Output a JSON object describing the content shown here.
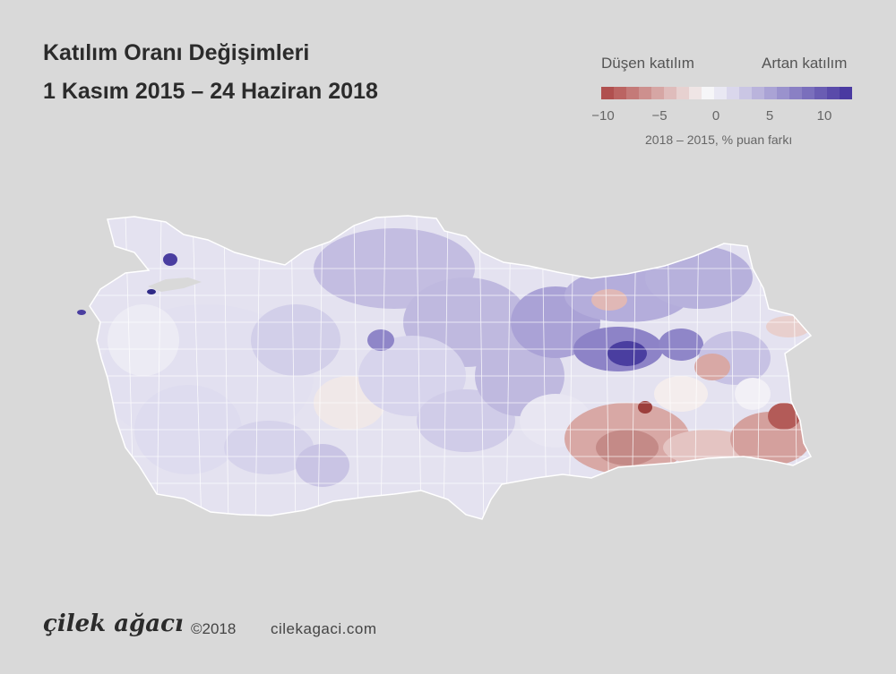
{
  "title": {
    "line1": "Katılım Oranı Değişimleri",
    "line2": "1 Kasım 2015 – 24 Haziran 2018"
  },
  "legend": {
    "low_label": "Düşen katılım",
    "high_label": "Artan katılım",
    "ticks": [
      "−10",
      "−5",
      "0",
      "5",
      "10"
    ],
    "caption": "2018 – 2015, % puan farkı",
    "colors": [
      "#b0504f",
      "#bb6462",
      "#c47a78",
      "#cd908e",
      "#d6a6a4",
      "#dfbcbb",
      "#e7d1d0",
      "#efe5e5",
      "#f6f6f8",
      "#e9e8f3",
      "#dad7ec",
      "#cac6e4",
      "#bab4dc",
      "#aaa3d5",
      "#9a92cd",
      "#8a80c4",
      "#7a6fbc",
      "#6a5db3",
      "#5a4baa",
      "#4a3aa1"
    ]
  },
  "map": {
    "region_colors": {
      "strong_decrease": "#b35b58",
      "decrease": "#d8a8a5",
      "slight_decrease": "#ecdcdc",
      "neutral": "#f3f2f6",
      "slight_increase": "#dcdaee",
      "increase": "#b6b0da",
      "strong_increase": "#6a60b8",
      "max_increase": "#3c3196"
    }
  },
  "footer": {
    "brand": "çilek ağacı",
    "copyright": "©2018",
    "site": "cilekagaci.com"
  }
}
